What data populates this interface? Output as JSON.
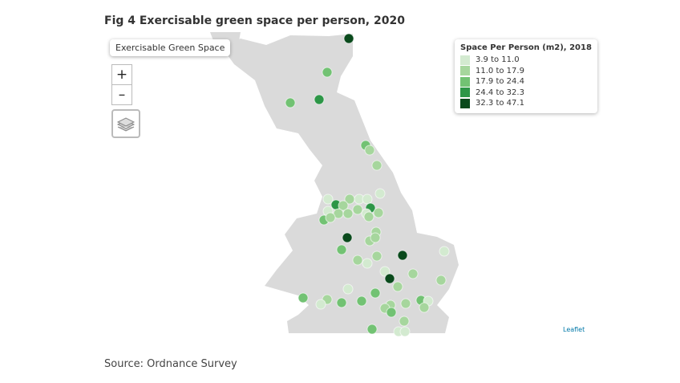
{
  "header": {
    "title": "Fig 4 Exercisable green space per person, 2020"
  },
  "map": {
    "layer_label": "Exercisable Green Space",
    "zoom_in": "+",
    "zoom_out": "–",
    "attribution": "Leaflet"
  },
  "legend": {
    "title": "Space Per Person (m2), 2018",
    "items": [
      {
        "label": "3.9 to 11.0",
        "color": "#d3ead0"
      },
      {
        "label": "11.0 to 17.9",
        "color": "#a6d69d"
      },
      {
        "label": "17.9 to 24.4",
        "color": "#72c273"
      },
      {
        "label": "24.4 to 32.3",
        "color": "#2d9647"
      },
      {
        "label": "32.3 to 47.1",
        "color": "#0a4a1c"
      }
    ]
  },
  "footer": {
    "source": "Source: Ordnance Survey"
  }
}
